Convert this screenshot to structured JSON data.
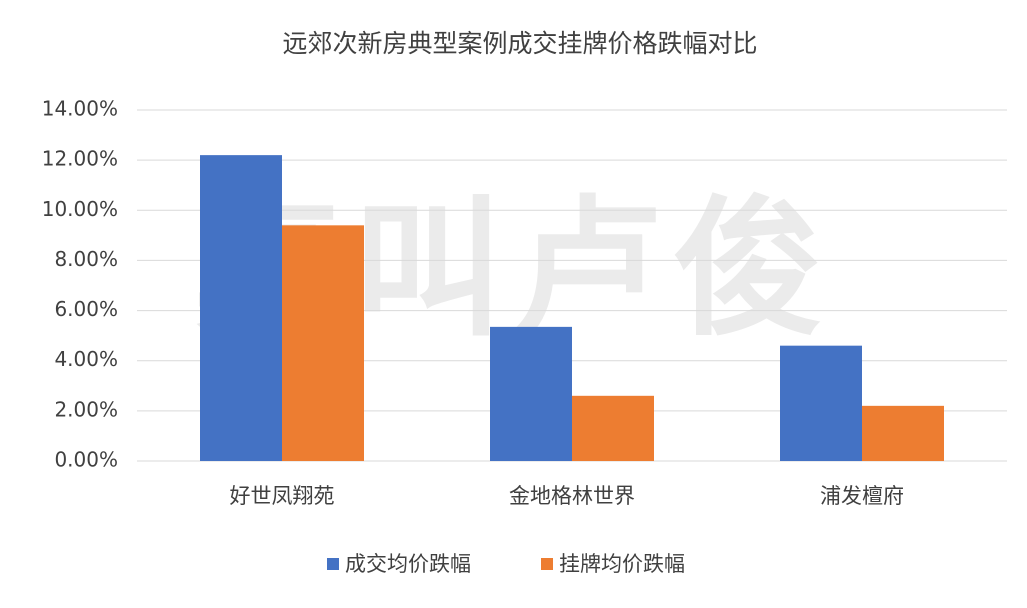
{
  "chart_data": {
    "type": "bar",
    "title": "远郊次新房典型案例成交挂牌价格跌幅对比",
    "watermark": "真叫卢俊",
    "categories": [
      "好世凤翔苑",
      "金地格林世界",
      "浦发檀府"
    ],
    "series": [
      {
        "name": "成交均价跌幅",
        "color": "#4472c4",
        "values": [
          12.2,
          5.35,
          4.6
        ]
      },
      {
        "name": "挂牌均价跌幅",
        "color": "#ed7d31",
        "values": [
          9.4,
          2.6,
          2.2
        ]
      }
    ],
    "ylim": [
      0,
      14
    ],
    "yticks": [
      {
        "value": 0,
        "label": "0.00%"
      },
      {
        "value": 2,
        "label": "2.00%"
      },
      {
        "value": 4,
        "label": "4.00%"
      },
      {
        "value": 6,
        "label": "6.00%"
      },
      {
        "value": 8,
        "label": "8.00%"
      },
      {
        "value": 10,
        "label": "10.00%"
      },
      {
        "value": 12,
        "label": "12.00%"
      },
      {
        "value": 14,
        "label": "14.00%"
      }
    ],
    "grid": true,
    "legend": "bottom"
  }
}
